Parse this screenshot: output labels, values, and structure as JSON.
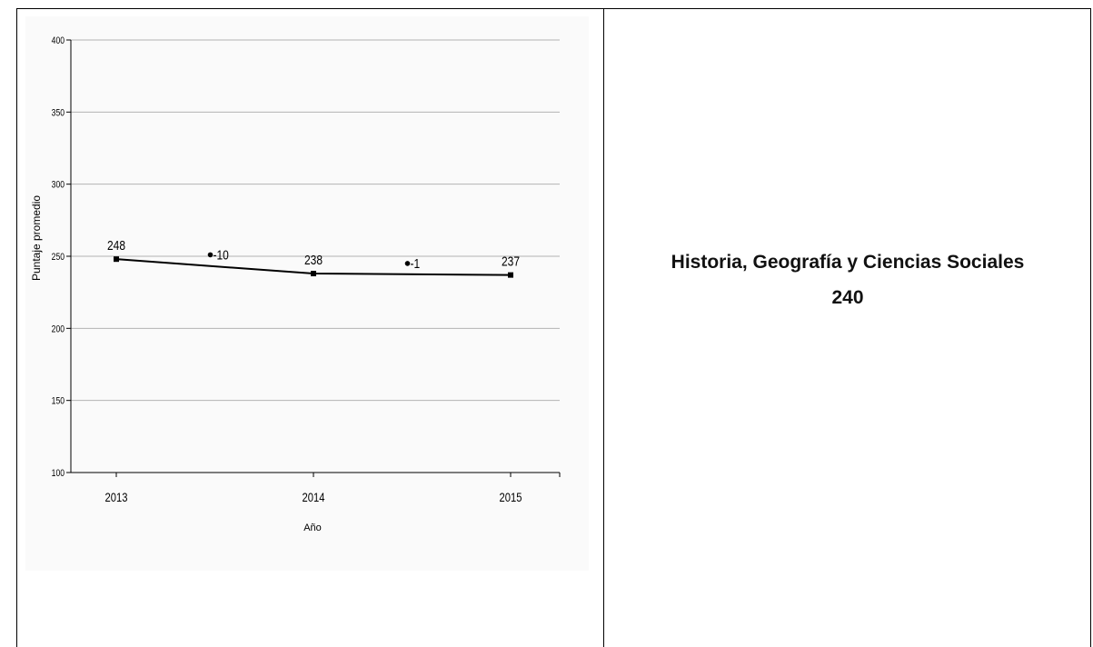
{
  "subject": {
    "name": "Historia, Geografía y Ciencias Sociales",
    "score": "240"
  },
  "chart_data": {
    "type": "line",
    "x": [
      2013,
      2014,
      2015
    ],
    "categories": [
      "2013",
      "2014",
      "2015"
    ],
    "values": [
      248,
      238,
      237
    ],
    "value_labels": [
      "248",
      "238",
      "237"
    ],
    "differences": [
      {
        "between": [
          "2013",
          "2014"
        ],
        "value": -10,
        "label": "-10",
        "y": 251
      },
      {
        "between": [
          "2014",
          "2015"
        ],
        "value": -1,
        "label": "-1",
        "y": 245
      }
    ],
    "xlabel": "Año",
    "ylabel": "Puntaje promedio",
    "ylim": [
      100,
      400
    ],
    "yticks": [
      100,
      150,
      200,
      250,
      300,
      350,
      400
    ],
    "grid": true,
    "colors": {
      "line": "#000000",
      "grid": "#b3b3b3",
      "axis": "#000000",
      "text": "#000000"
    }
  }
}
